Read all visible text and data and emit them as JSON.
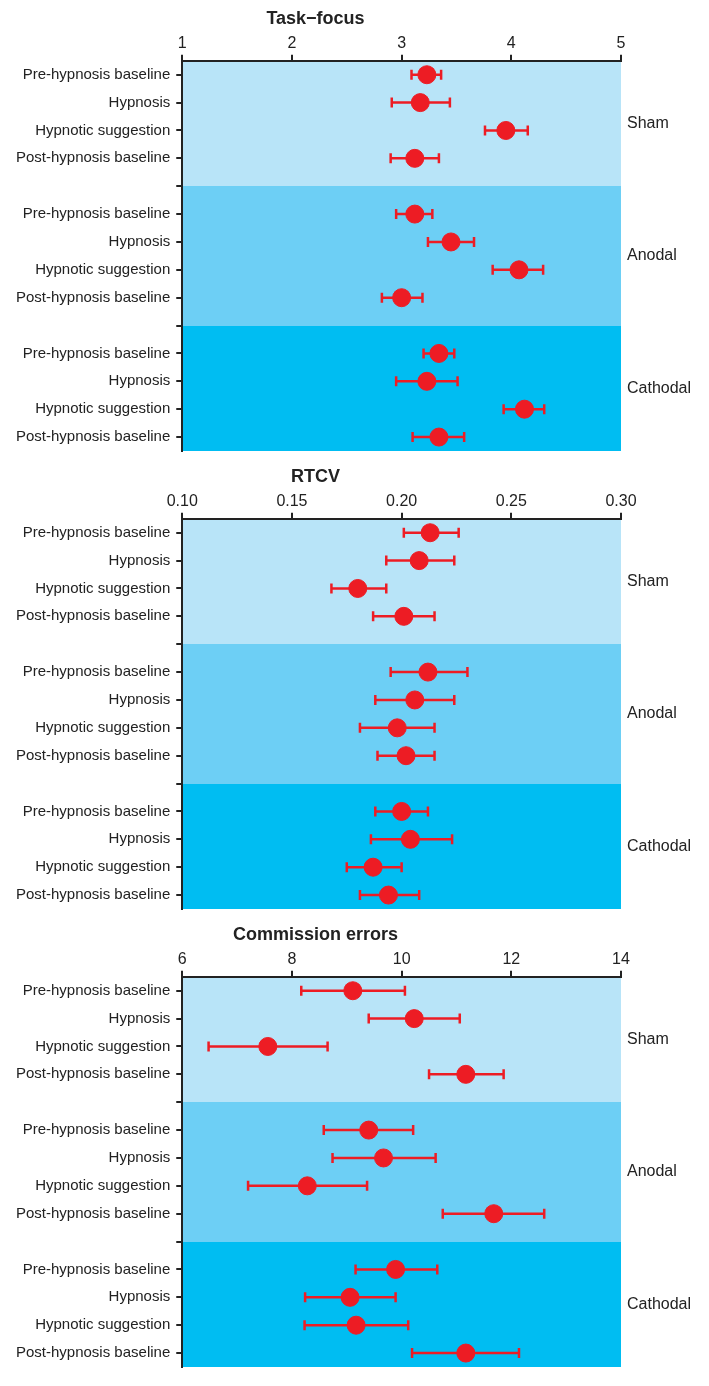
{
  "chart_data": [
    {
      "type": "scatter",
      "title": "Task−focus",
      "categories": [
        "Pre-hypnosis baseline",
        "Hypnosis",
        "Hypnotic suggestion",
        "Post-hypnosis baseline",
        null,
        "Pre-hypnosis baseline",
        "Hypnosis",
        "Hypnotic suggestion",
        "Post-hypnosis baseline",
        null,
        "Pre-hypnosis baseline",
        "Hypnosis",
        "Hypnotic suggestion",
        "Post-hypnosis baseline"
      ],
      "values": [
        3.23,
        3.17,
        3.95,
        3.12,
        null,
        3.12,
        3.45,
        4.07,
        3.0,
        null,
        3.34,
        3.23,
        4.12,
        3.34
      ],
      "errors": [
        [
          3.09,
          3.36
        ],
        [
          2.91,
          3.44
        ],
        [
          3.76,
          4.15
        ],
        [
          2.9,
          3.34
        ],
        null,
        [
          2.95,
          3.28
        ],
        [
          3.24,
          3.66
        ],
        [
          3.83,
          4.29
        ],
        [
          2.82,
          3.19
        ],
        null,
        [
          3.2,
          3.48
        ],
        [
          2.95,
          3.51
        ],
        [
          3.93,
          4.3
        ],
        [
          3.1,
          3.57
        ]
      ],
      "color": "#ed1c24",
      "marker": "circle",
      "orientation": "horizontal",
      "xlim": [
        1,
        5
      ],
      "xticks": [
        1,
        2,
        3,
        4,
        5
      ],
      "annotations": [
        "Sham",
        "Anodal",
        "Cathodal"
      ]
    },
    {
      "type": "scatter",
      "title": "RTCV",
      "categories": [
        "Pre-hypnosis baseline",
        "Hypnosis",
        "Hypnotic suggestion",
        "Post-hypnosis baseline",
        null,
        "Pre-hypnosis baseline",
        "Hypnosis",
        "Hypnotic suggestion",
        "Post-hypnosis baseline",
        null,
        "Pre-hypnosis baseline",
        "Hypnosis",
        "Hypnotic suggestion",
        "Post-hypnosis baseline"
      ],
      "values": [
        0.213,
        0.208,
        0.18,
        0.201,
        null,
        0.212,
        0.206,
        0.198,
        0.202,
        null,
        0.2,
        0.204,
        0.187,
        0.194
      ],
      "errors": [
        [
          0.201,
          0.226
        ],
        [
          0.193,
          0.224
        ],
        [
          0.168,
          0.193
        ],
        [
          0.187,
          0.215
        ],
        null,
        [
          0.195,
          0.23
        ],
        [
          0.188,
          0.224
        ],
        [
          0.181,
          0.215
        ],
        [
          0.189,
          0.215
        ],
        null,
        [
          0.188,
          0.212
        ],
        [
          0.186,
          0.223
        ],
        [
          0.175,
          0.2
        ],
        [
          0.181,
          0.208
        ]
      ],
      "color": "#ed1c24",
      "marker": "circle",
      "orientation": "horizontal",
      "xlim": [
        0.1,
        0.3
      ],
      "xticks": [
        {
          "value": 0.1,
          "label": "0.10"
        },
        0.15,
        {
          "value": 0.2,
          "label": "0.20"
        },
        0.25,
        {
          "value": 0.3,
          "label": "0.30"
        }
      ],
      "annotations": [
        "Sham",
        "Anodal",
        "Cathodal"
      ]
    },
    {
      "type": "scatter",
      "title": "Commission errors",
      "categories": [
        "Pre-hypnosis baseline",
        "Hypnosis",
        "Hypnotic suggestion",
        "Post-hypnosis baseline",
        null,
        "Pre-hypnosis baseline",
        "Hypnosis",
        "Hypnotic suggestion",
        "Post-hypnosis baseline",
        null,
        "Pre-hypnosis baseline",
        "Hypnosis",
        "Hypnotic suggestion",
        "Post-hypnosis baseline"
      ],
      "values": [
        9.11,
        10.23,
        7.56,
        11.17,
        null,
        9.4,
        9.67,
        8.28,
        11.68,
        null,
        9.89,
        9.06,
        9.17,
        11.17
      ],
      "errors": [
        [
          8.17,
          10.06
        ],
        [
          9.4,
          11.06
        ],
        [
          6.48,
          8.65
        ],
        [
          10.5,
          11.86
        ],
        null,
        [
          8.58,
          10.21
        ],
        [
          8.74,
          10.62
        ],
        [
          7.2,
          9.37
        ],
        [
          10.75,
          12.6
        ],
        null,
        [
          9.16,
          10.65
        ],
        [
          8.24,
          9.89
        ],
        [
          8.23,
          10.12
        ],
        [
          10.19,
          12.14
        ]
      ],
      "color": "#ed1c24",
      "marker": "circle",
      "orientation": "horizontal",
      "xlim": [
        6,
        14
      ],
      "xticks": [
        6,
        8,
        10,
        12,
        14
      ],
      "annotations": [
        "Sham",
        "Anodal",
        "Cathodal"
      ]
    }
  ]
}
